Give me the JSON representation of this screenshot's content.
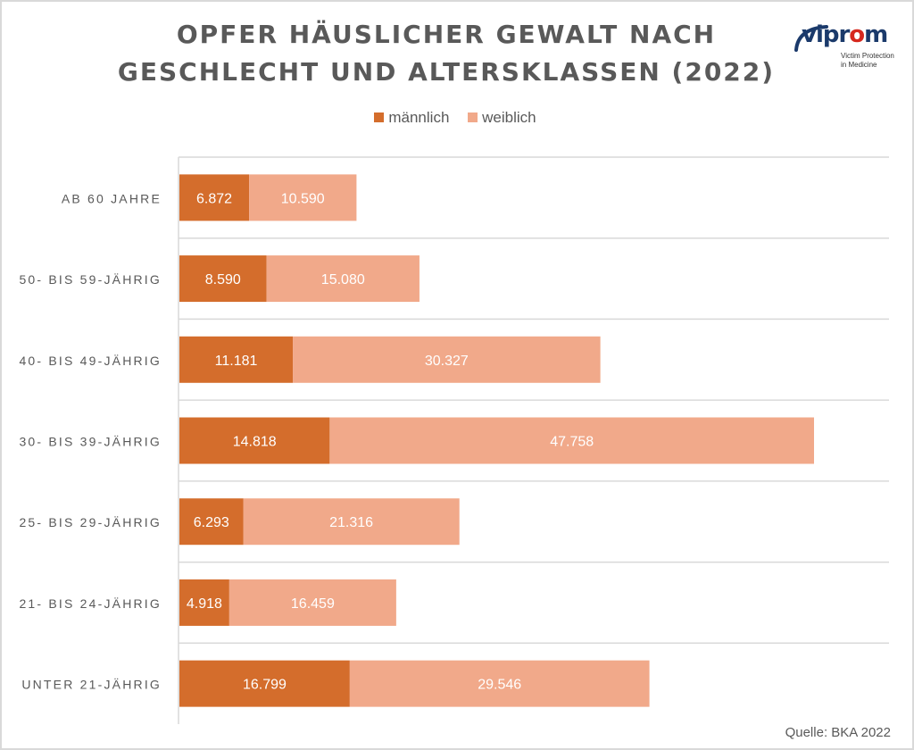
{
  "title_lines": [
    "OPFER HÄUSLICHER GEWALT NACH",
    "GESCHLECHT UND ALTERSKLASSEN (2022)"
  ],
  "logo": {
    "word_start": "vipr",
    "word_mark": "o",
    "word_end": "m",
    "sub_lines": [
      "Victim Protection",
      "in Medicine"
    ]
  },
  "source": "Quelle: BKA 2022",
  "colors": {
    "maennlich": "#d46d2c",
    "weiblich": "#f1a98a",
    "grid": "#d9d9d9",
    "text": "#595959"
  },
  "chart_data": {
    "type": "bar",
    "orientation": "horizontal",
    "stacked": true,
    "categories": [
      "AB 60 JAHRE",
      "50- BIS 59-JÄHRIG",
      "40- BIS 49-JÄHRIG",
      "30- BIS 39-JÄHRIG",
      "25- BIS 29-JÄHRIG",
      "21- BIS 24-JÄHRIG",
      "UNTER 21-JÄHRIG"
    ],
    "series": [
      {
        "name": "männlich",
        "values": [
          6872,
          8590,
          11181,
          14818,
          6293,
          4918,
          16799
        ],
        "labels": [
          "6.872",
          "8.590",
          "11.181",
          "14.818",
          "6.293",
          "4.918",
          "16.799"
        ]
      },
      {
        "name": "weiblich",
        "values": [
          10590,
          15080,
          30327,
          47758,
          21316,
          16459,
          29546
        ],
        "labels": [
          "10.590",
          "15.080",
          "30.327",
          "47.758",
          "21.316",
          "16.459",
          "29.546"
        ]
      }
    ],
    "xlim": [
      0,
      70000
    ],
    "legend": "top",
    "grid": "horizontal separators"
  }
}
